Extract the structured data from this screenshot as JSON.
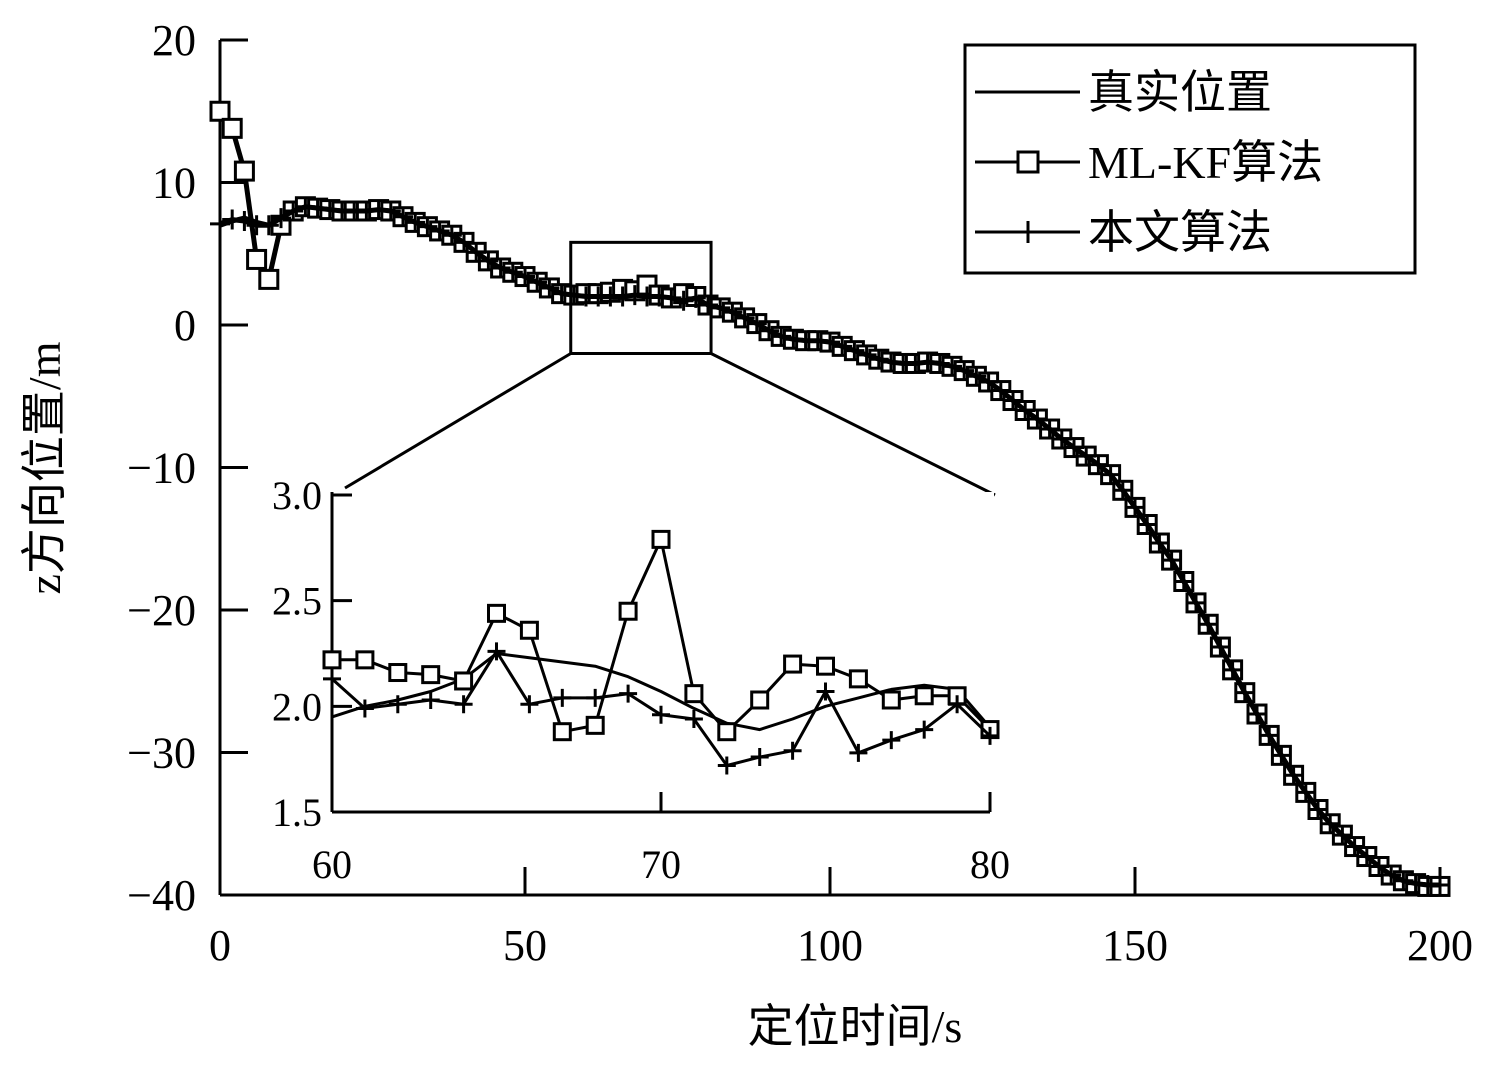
{
  "chart_data": [
    {
      "type": "line",
      "xlabel": "定位时间/s",
      "ylabel": "z方向位置/m",
      "xlim": [
        0,
        200
      ],
      "ylim": [
        -40,
        20
      ],
      "xticks": [
        0,
        50,
        100,
        150,
        200
      ],
      "yticks": [
        -40,
        -30,
        -20,
        -10,
        0,
        10,
        20
      ],
      "xtick_labels": [
        "0",
        "50",
        "100",
        "150",
        "200"
      ],
      "ytick_labels": [
        "−40",
        "−30",
        "−20",
        "−10",
        "0",
        "10",
        "20"
      ],
      "grid": false,
      "legend_position": "top-right",
      "x": [
        0,
        2,
        4,
        6,
        8,
        10,
        12,
        14,
        16,
        18,
        20,
        22,
        24,
        26,
        28,
        30,
        32,
        34,
        36,
        38,
        40,
        42,
        44,
        46,
        48,
        50,
        52,
        54,
        56,
        58,
        60,
        62,
        64,
        66,
        68,
        70,
        72,
        74,
        76,
        78,
        80,
        82,
        84,
        86,
        88,
        90,
        92,
        94,
        96,
        98,
        100,
        102,
        104,
        106,
        108,
        110,
        112,
        114,
        116,
        118,
        120,
        122,
        124,
        126,
        128,
        130,
        132,
        134,
        136,
        138,
        140,
        142,
        144,
        146,
        148,
        150,
        152,
        154,
        156,
        158,
        160,
        162,
        164,
        166,
        168,
        170,
        172,
        174,
        176,
        178,
        180,
        182,
        184,
        186,
        188,
        190,
        192,
        194,
        196,
        198,
        200
      ],
      "series": [
        {
          "name": "真实位置",
          "marker": "none",
          "values": [
            7.0,
            7.3,
            7.5,
            7.2,
            7.0,
            7.5,
            8.0,
            8.3,
            8.2,
            8.1,
            8.0,
            8.0,
            8.0,
            8.1,
            8.0,
            7.6,
            7.2,
            6.9,
            6.6,
            6.3,
            5.8,
            5.1,
            4.5,
            4.0,
            3.7,
            3.4,
            3.0,
            2.6,
            2.2,
            2.1,
            2.1,
            2.1,
            2.1,
            2.1,
            2.0,
            2.0,
            2.0,
            2.0,
            2.0,
            1.8,
            1.4,
            1.2,
            0.9,
            0.5,
            0.1,
            -0.4,
            -0.8,
            -1.0,
            -1.1,
            -1.1,
            -1.2,
            -1.5,
            -1.8,
            -2.1,
            -2.4,
            -2.6,
            -2.7,
            -2.7,
            -2.6,
            -2.7,
            -2.9,
            -3.2,
            -3.6,
            -4.0,
            -4.6,
            -5.3,
            -6.0,
            -6.6,
            -7.3,
            -8.0,
            -8.6,
            -9.2,
            -9.8,
            -10.5,
            -11.6,
            -12.8,
            -14.0,
            -15.3,
            -16.5,
            -18.0,
            -19.5,
            -21.0,
            -22.6,
            -24.2,
            -25.8,
            -27.3,
            -28.8,
            -30.2,
            -31.6,
            -32.8,
            -34.0,
            -35.0,
            -35.8,
            -36.6,
            -37.3,
            -38.0,
            -38.6,
            -39.0,
            -39.2,
            -39.3,
            -39.3
          ]
        },
        {
          "name": "ML-KF算法",
          "marker": "square",
          "values": [
            15.0,
            13.8,
            10.8,
            4.6,
            3.2,
            7.0,
            8.0,
            8.3,
            8.2,
            8.1,
            8.0,
            8.0,
            8.0,
            8.1,
            8.0,
            7.6,
            7.2,
            6.9,
            6.6,
            6.3,
            5.8,
            5.1,
            4.5,
            4.0,
            3.7,
            3.4,
            3.0,
            2.6,
            2.2,
            2.1,
            2.2,
            2.2,
            2.3,
            2.5,
            2.4,
            2.8,
            2.1,
            1.9,
            2.2,
            2.0,
            1.4,
            1.2,
            0.9,
            0.5,
            0.1,
            -0.4,
            -0.8,
            -1.0,
            -1.1,
            -1.1,
            -1.2,
            -1.5,
            -1.8,
            -2.1,
            -2.4,
            -2.6,
            -2.7,
            -2.7,
            -2.6,
            -2.7,
            -2.9,
            -3.2,
            -3.6,
            -4.0,
            -4.6,
            -5.3,
            -6.0,
            -6.6,
            -7.3,
            -8.0,
            -8.6,
            -9.2,
            -9.8,
            -10.5,
            -11.6,
            -12.8,
            -14.0,
            -15.3,
            -16.5,
            -18.0,
            -19.5,
            -21.0,
            -22.6,
            -24.2,
            -25.8,
            -27.3,
            -28.8,
            -30.2,
            -31.6,
            -32.8,
            -34.0,
            -35.0,
            -35.8,
            -36.6,
            -37.3,
            -38.0,
            -38.6,
            -39.0,
            -39.2,
            -39.4,
            -39.4
          ]
        },
        {
          "name": "本文算法",
          "marker": "plus",
          "values": [
            7.1,
            7.4,
            7.3,
            7.0,
            7.0,
            7.5,
            8.0,
            8.3,
            8.2,
            8.1,
            8.0,
            8.0,
            8.0,
            8.1,
            8.0,
            7.6,
            7.2,
            6.9,
            6.6,
            6.3,
            5.8,
            5.1,
            4.5,
            4.0,
            3.7,
            3.4,
            3.0,
            2.6,
            2.2,
            2.1,
            2.0,
            2.0,
            2.0,
            2.0,
            2.1,
            2.0,
            2.0,
            1.9,
            1.7,
            1.9,
            1.4,
            1.2,
            0.9,
            0.5,
            0.1,
            -0.4,
            -0.8,
            -1.0,
            -1.1,
            -1.1,
            -1.2,
            -1.5,
            -1.8,
            -2.1,
            -2.4,
            -2.6,
            -2.7,
            -2.7,
            -2.6,
            -2.7,
            -2.9,
            -3.2,
            -3.6,
            -4.0,
            -4.6,
            -5.3,
            -6.0,
            -6.6,
            -7.3,
            -8.0,
            -8.6,
            -9.2,
            -9.8,
            -10.5,
            -11.6,
            -12.8,
            -14.0,
            -15.3,
            -16.5,
            -18.0,
            -19.5,
            -21.0,
            -22.6,
            -24.2,
            -25.8,
            -27.3,
            -28.8,
            -30.2,
            -31.6,
            -32.8,
            -34.0,
            -35.0,
            -35.8,
            -36.6,
            -37.3,
            -38.0,
            -38.6,
            -39.0,
            -39.2,
            -39.3,
            -39.3
          ]
        }
      ],
      "zoom_region": {
        "x": [
          57.5,
          80.5
        ],
        "y": [
          -2.0,
          5.8
        ]
      }
    },
    {
      "type": "line",
      "role": "inset",
      "xlim": [
        60,
        80
      ],
      "ylim": [
        1.5,
        3.0
      ],
      "xticks": [
        60,
        70,
        80
      ],
      "yticks": [
        1.5,
        2.0,
        2.5,
        3.0
      ],
      "xtick_labels": [
        "60",
        "70",
        "80"
      ],
      "ytick_labels": [
        "1.5",
        "2.0",
        "2.5",
        "3.0"
      ],
      "grid": false,
      "x": [
        60,
        61,
        62,
        63,
        64,
        65,
        66,
        67,
        68,
        69,
        70,
        71,
        72,
        73,
        74,
        75,
        76,
        77,
        78,
        79,
        80
      ],
      "series": [
        {
          "name": "真实位置",
          "marker": "none",
          "values": [
            1.95,
            2.0,
            2.03,
            2.07,
            2.13,
            2.25,
            2.23,
            2.21,
            2.19,
            2.14,
            2.07,
            1.99,
            1.92,
            1.89,
            1.94,
            2.0,
            2.04,
            2.08,
            2.1,
            2.08,
            1.9
          ]
        },
        {
          "name": "ML-KF算法",
          "marker": "square",
          "values": [
            2.22,
            2.22,
            2.16,
            2.15,
            2.12,
            2.44,
            2.36,
            1.88,
            1.91,
            2.45,
            2.79,
            2.06,
            1.88,
            2.03,
            2.2,
            2.19,
            2.13,
            2.03,
            2.05,
            2.05,
            1.89
          ]
        },
        {
          "name": "本文算法",
          "marker": "plus",
          "values": [
            2.13,
            1.99,
            2.01,
            2.03,
            2.01,
            2.26,
            2.01,
            2.04,
            2.04,
            2.06,
            1.96,
            1.94,
            1.72,
            1.76,
            1.79,
            2.07,
            1.78,
            1.84,
            1.89,
            2.01,
            1.86
          ]
        }
      ]
    }
  ]
}
